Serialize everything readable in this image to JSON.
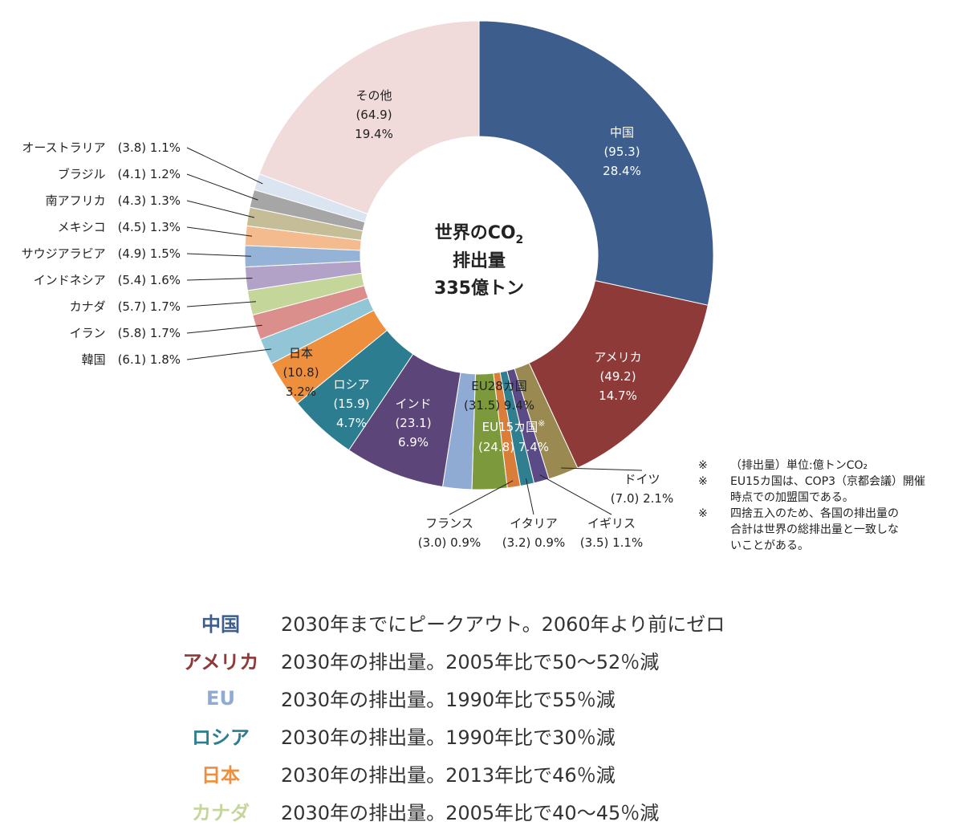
{
  "chart_data": {
    "type": "pie",
    "center": {
      "line1": "世界のCO",
      "sub": "2",
      "line2": "排出量",
      "line3": "335億トン"
    },
    "slices": [
      {
        "id": "china",
        "name": "中国",
        "value": 95.3,
        "pct": "28.4%",
        "color": "#3d5e8d",
        "label_inside": true,
        "value_text": "(95.3)"
      },
      {
        "id": "usa",
        "name": "アメリカ",
        "value": 49.2,
        "pct": "14.7%",
        "color": "#8d3a38",
        "label_inside": true,
        "value_text": "(49.2)"
      },
      {
        "id": "germany",
        "name": "ドイツ",
        "value": 7.0,
        "pct": "2.1%",
        "color": "#9a8a52",
        "value_text": "(7.0)"
      },
      {
        "id": "uk",
        "name": "イギリス",
        "value": 3.5,
        "pct": "1.1%",
        "color": "#5a4a86",
        "value_text": "(3.5)"
      },
      {
        "id": "italy",
        "name": "イタリア",
        "value": 3.2,
        "pct": "0.9%",
        "color": "#2f7f90",
        "value_text": "(3.2)"
      },
      {
        "id": "france",
        "name": "フランス",
        "value": 3.0,
        "pct": "0.9%",
        "color": "#d97d38",
        "value_text": "(3.0)"
      },
      {
        "id": "eu15other",
        "name": "EU15カ国",
        "value": 8.1,
        "pct": "",
        "color": "#7c9a3c",
        "value_text": ""
      },
      {
        "id": "eu28other",
        "name": "EU28カ国",
        "value": 6.7,
        "pct": "",
        "color": "#8faad3",
        "value_text": ""
      },
      {
        "id": "india",
        "name": "インド",
        "value": 23.1,
        "pct": "6.9%",
        "color": "#5c4679",
        "label_inside": true,
        "value_text": "(23.1)"
      },
      {
        "id": "russia",
        "name": "ロシア",
        "value": 15.9,
        "pct": "4.7%",
        "color": "#2d7d91",
        "label_inside": true,
        "value_text": "(15.9)"
      },
      {
        "id": "japan",
        "name": "日本",
        "value": 10.8,
        "pct": "3.2%",
        "color": "#ee8f3d",
        "label_inside": true,
        "value_text": "(10.8)"
      },
      {
        "id": "korea",
        "name": "韓国",
        "value": 6.1,
        "pct": "1.8%",
        "color": "#92c6d6",
        "value_text": "(6.1)"
      },
      {
        "id": "iran",
        "name": "イラン",
        "value": 5.8,
        "pct": "1.7%",
        "color": "#db8f8c",
        "value_text": "(5.8)"
      },
      {
        "id": "canada",
        "name": "カナダ",
        "value": 5.7,
        "pct": "1.7%",
        "color": "#c5d69b",
        "value_text": "(5.7)"
      },
      {
        "id": "indonesia",
        "name": "インドネシア",
        "value": 5.4,
        "pct": "1.6%",
        "color": "#b3a2c8",
        "value_text": "(5.4)"
      },
      {
        "id": "saudi",
        "name": "サウジアラビア",
        "value": 4.9,
        "pct": "1.5%",
        "color": "#95b3d7",
        "value_text": "(4.9)"
      },
      {
        "id": "mexico",
        "name": "メキシコ",
        "value": 4.5,
        "pct": "1.3%",
        "color": "#f4bb8e",
        "value_text": "(4.5)"
      },
      {
        "id": "safrica",
        "name": "南アフリカ",
        "value": 4.3,
        "pct": "1.3%",
        "color": "#c4bd97",
        "value_text": "(4.3)"
      },
      {
        "id": "brazil",
        "name": "ブラジル",
        "value": 4.1,
        "pct": "1.2%",
        "color": "#a6a6a6",
        "value_text": "(4.1)"
      },
      {
        "id": "australia",
        "name": "オーストラリア",
        "value": 3.8,
        "pct": "1.1%",
        "color": "#dbe4f1",
        "value_text": "(3.8)"
      },
      {
        "id": "other",
        "name": "その他",
        "value": 64.9,
        "pct": "19.4%",
        "color": "#f0dada",
        "label_inside": true,
        "value_text": "(64.9)"
      }
    ],
    "eu_groups": {
      "eu28": {
        "name": "EU28カ国",
        "value_text": "(31.5)",
        "pct": "9.4%"
      },
      "eu15": {
        "name": "EU15カ国",
        "mark": "※",
        "value_text": "(24.8)",
        "pct": "7.4%"
      }
    },
    "notes": [
      {
        "mark": "※",
        "lines": [
          "（排出量）単位:億トンCO₂"
        ]
      },
      {
        "mark": "※",
        "lines": [
          "EU15カ国は、COP3（京都会議）開催",
          "時点での加盟国である。"
        ]
      },
      {
        "mark": "※",
        "lines": [
          "四捨五入のため、各国の排出量の",
          "合計は世界の総排出量と一致しな",
          "いことがある。"
        ]
      }
    ]
  },
  "targets": [
    {
      "name": "中国",
      "color": "#3d5e8d",
      "text": "2030年までにピークアウト。2060年より前にゼロ"
    },
    {
      "name": "アメリカ",
      "color": "#8d3a38",
      "text": "2030年の排出量。2005年比で50～52％減"
    },
    {
      "name": "EU",
      "color": "#8faad3",
      "text": "2030年の排出量。1990年比で55％減"
    },
    {
      "name": "ロシア",
      "color": "#2d7d91",
      "text": "2030年の排出量。1990年比で30％減"
    },
    {
      "name": "日本",
      "color": "#ee8f3d",
      "text": "2030年の排出量。2013年比で46％減"
    },
    {
      "name": "カナダ",
      "color": "#c5d69b",
      "text": "2030年の排出量。2005年比で40～45％減"
    }
  ]
}
